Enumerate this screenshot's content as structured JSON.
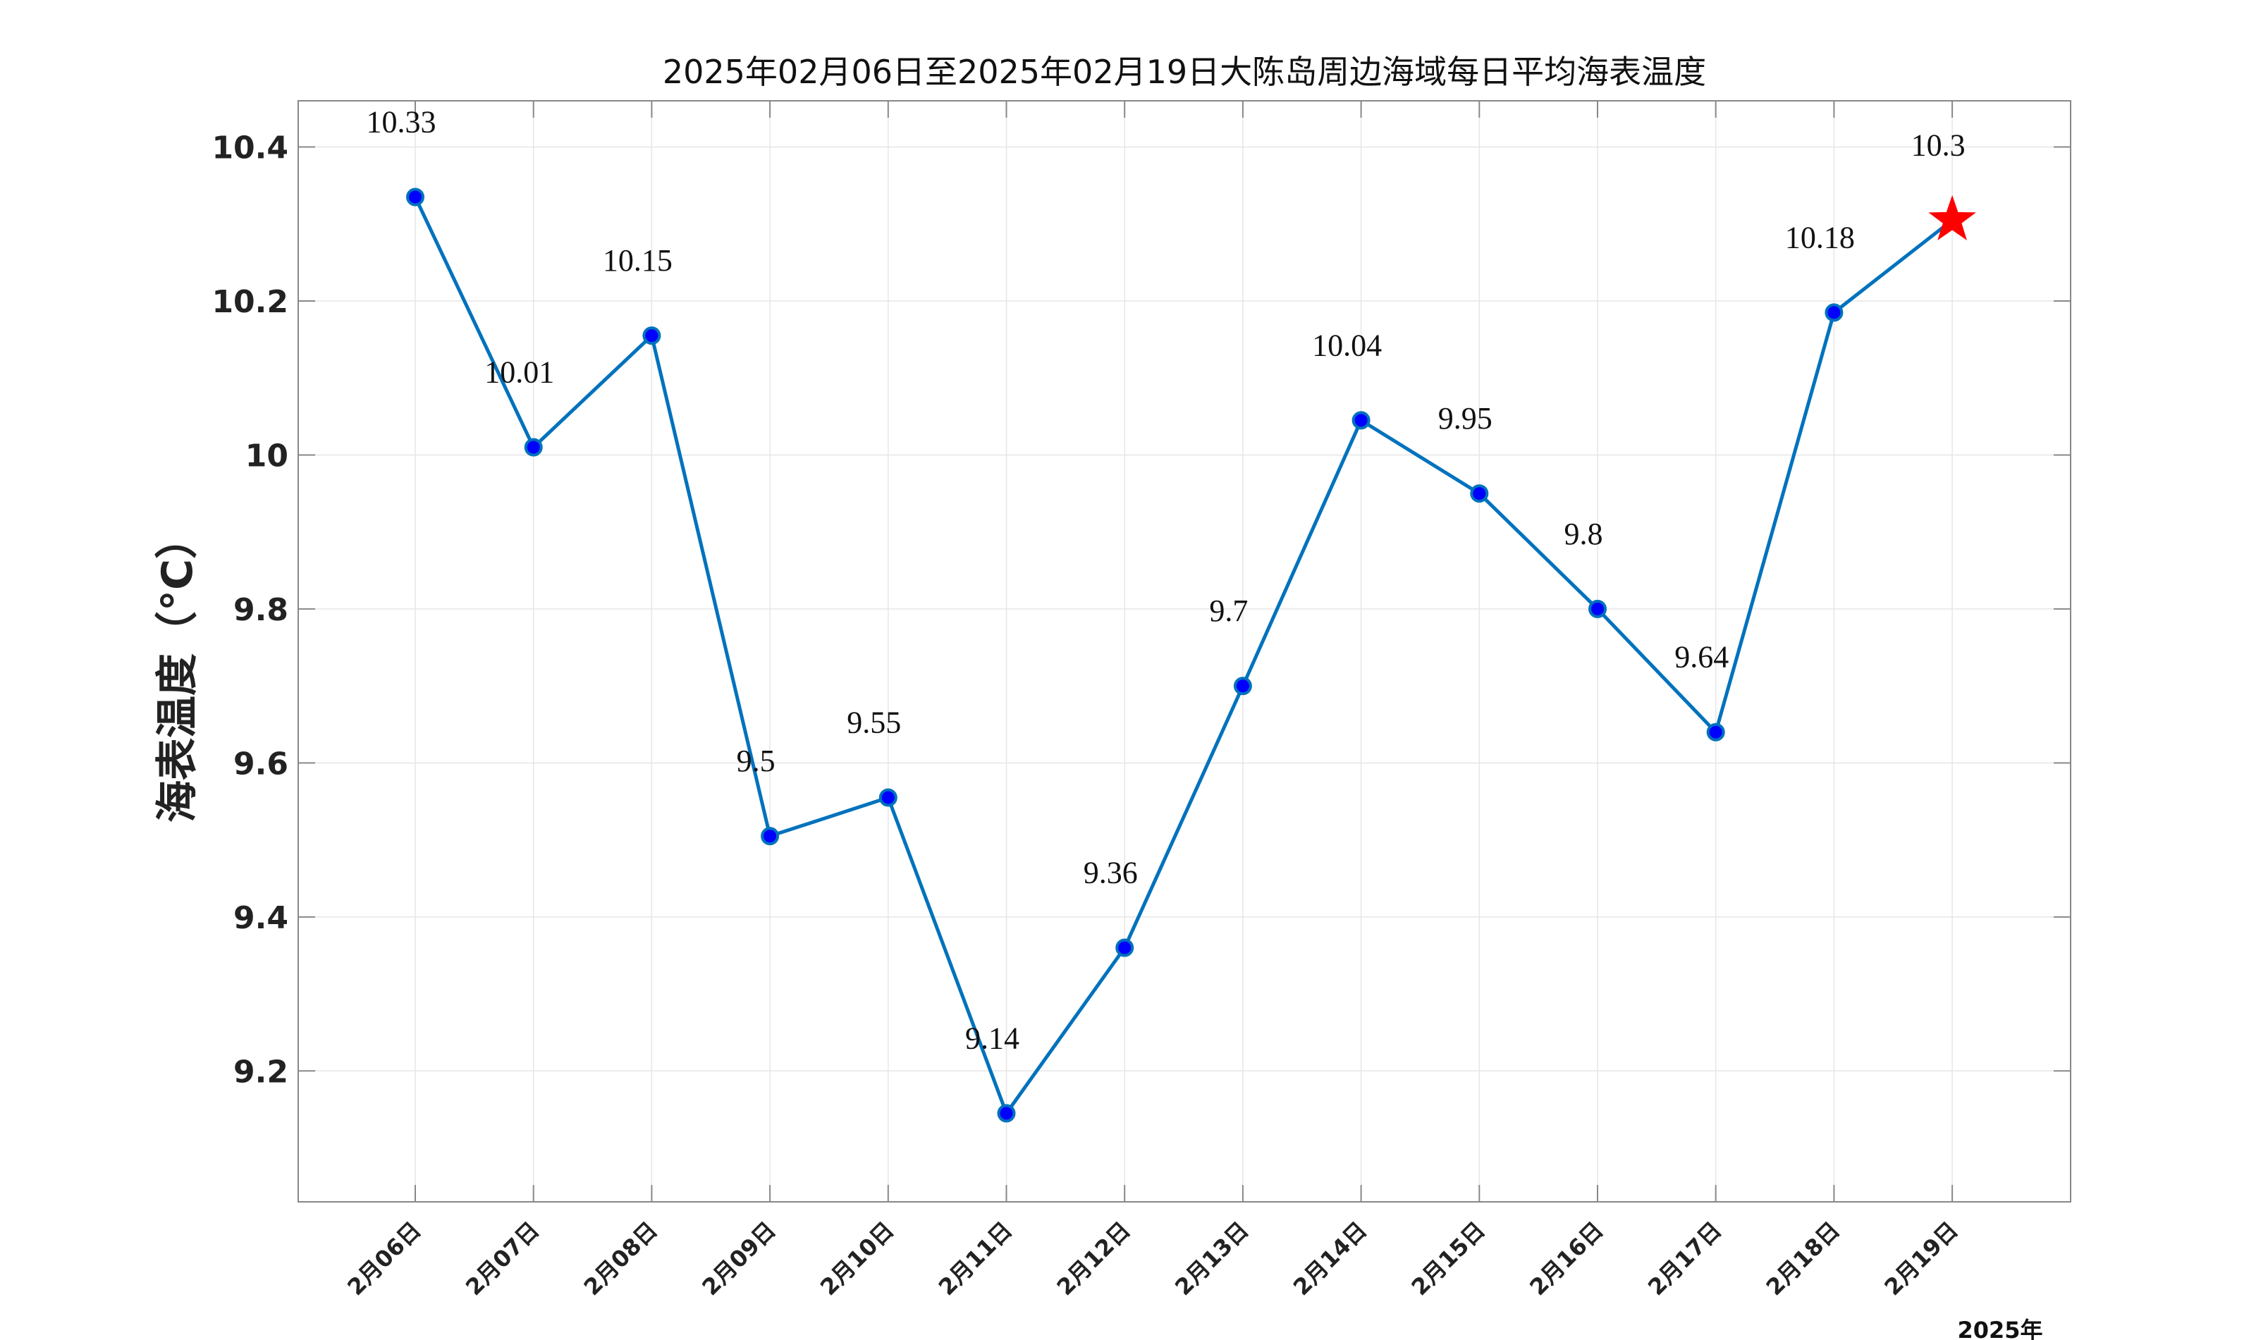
{
  "chart_data": {
    "type": "line",
    "title": "2025年02月06日至2025年02月19日大陈岛周边海域每日平均海表温度",
    "ylabel": "海表温度（°C）",
    "xlabel": "",
    "x_annotation": "2025年",
    "ylim": [
      9.03,
      10.46
    ],
    "yticks": [
      9.2,
      9.4,
      9.6,
      9.8,
      10,
      10.2,
      10.4
    ],
    "ytick_labels": [
      "9.2",
      "9.4",
      "9.6",
      "9.8",
      "10",
      "10.2",
      "10.4"
    ],
    "grid": true,
    "categories": [
      "2月06日",
      "2月07日",
      "2月08日",
      "2月09日",
      "2月10日",
      "2月11日",
      "2月12日",
      "2月13日",
      "2月14日",
      "2月15日",
      "2月16日",
      "2月17日",
      "2月18日",
      "2月19日"
    ],
    "values": [
      10.335,
      10.01,
      10.155,
      9.505,
      9.555,
      9.145,
      9.36,
      9.7,
      10.045,
      9.95,
      9.8,
      9.64,
      10.185,
      10.305
    ],
    "data_labels": [
      "10.33",
      "10.01",
      "10.15",
      "9.5",
      "9.55",
      "9.14",
      "9.36",
      "9.7",
      "10.04",
      "9.95",
      "9.8",
      "9.64",
      "10.18",
      "10.3"
    ],
    "highlight_last_point": "star",
    "colors": {
      "line": "#0072BD",
      "marker_fill": "#0000FF",
      "marker_edge": "#0072BD",
      "star": "#FF0000",
      "grid": "#E6E6E6",
      "axes": "#888888"
    }
  }
}
